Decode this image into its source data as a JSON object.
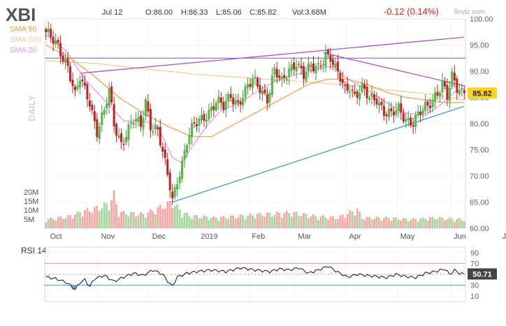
{
  "chart_data": {
    "type": "candlestick",
    "ticker": "XBI",
    "date_label": "Jul 12",
    "ohlc_summary": {
      "open": "O:86.00",
      "high": "H:86.33",
      "low": "L:85.06",
      "close": "C:85.82",
      "volume": "Vol:3.68M"
    },
    "change": "-0.12 (0.14%)",
    "source": "finviz.com",
    "period_label": "DAILY",
    "legend": [
      {
        "label": "SMA 50",
        "color": "#f29a3e"
      },
      {
        "label": "SMA 200",
        "color": "#f2c996"
      },
      {
        "label": "SMA 20",
        "color": "#e48fe0"
      }
    ],
    "price_axis": {
      "ylim": [
        60,
        100
      ],
      "ticks": [
        "60.00",
        "65.00",
        "70.00",
        "75.00",
        "80.00",
        "85.00",
        "90.00",
        "95.00",
        "100.00"
      ]
    },
    "volume_axis": {
      "ticks": [
        "5M",
        "10M",
        "15M",
        "20M"
      ]
    },
    "x_labels": [
      {
        "label": "Oct",
        "day": 1
      },
      {
        "label": "Nov",
        "day": 22
      },
      {
        "label": "Dec",
        "day": 43
      },
      {
        "label": "2019",
        "day": 63
      },
      {
        "label": "Feb",
        "day": 84
      },
      {
        "label": "Mar",
        "day": 103
      },
      {
        "label": "Apr",
        "day": 124
      },
      {
        "label": "May",
        "day": 145
      },
      {
        "label": "Jun",
        "day": 167
      },
      {
        "label": "Jul",
        "day": 187
      }
    ],
    "last_price": "85.82",
    "horizontal_level": 92.5,
    "trendlines": [
      {
        "color": "#b14fc9",
        "from": [
          14,
          89.6
        ],
        "to": [
          172,
          96.5
        ]
      },
      {
        "color": "#b14fc9",
        "from": [
          114,
          93.5
        ],
        "to": [
          172,
          87.2
        ]
      },
      {
        "color": "#3a9dd4",
        "from": [
          52,
          65.0
        ],
        "to": [
          172,
          83.3
        ]
      }
    ],
    "price_keypoints": [
      [
        0,
        97.0
      ],
      [
        5,
        95.0
      ],
      [
        9,
        91.0
      ],
      [
        12,
        85.0
      ],
      [
        14,
        88.5
      ],
      [
        18,
        84.5
      ],
      [
        21,
        78.5
      ],
      [
        24,
        82.0
      ],
      [
        26,
        86.0
      ],
      [
        28,
        80.0
      ],
      [
        31,
        76.5
      ],
      [
        33,
        78.0
      ],
      [
        36,
        80.5
      ],
      [
        39,
        79.5
      ],
      [
        41,
        84.5
      ],
      [
        43,
        80.0
      ],
      [
        46,
        78.5
      ],
      [
        49,
        72.0
      ],
      [
        51,
        68.0
      ],
      [
        52,
        65.5
      ],
      [
        54,
        69.5
      ],
      [
        56,
        72.5
      ],
      [
        58,
        76.5
      ],
      [
        61,
        79.5
      ],
      [
        64,
        81.0
      ],
      [
        67,
        82.5
      ],
      [
        70,
        84.0
      ],
      [
        73,
        83.0
      ],
      [
        76,
        85.5
      ],
      [
        79,
        84.0
      ],
      [
        82,
        86.0
      ],
      [
        85,
        88.0
      ],
      [
        88,
        87.0
      ],
      [
        91,
        85.0
      ],
      [
        94,
        90.0
      ],
      [
        97,
        87.5
      ],
      [
        100,
        90.5
      ],
      [
        103,
        92.0
      ],
      [
        106,
        89.0
      ],
      [
        109,
        90.5
      ],
      [
        112,
        91.0
      ],
      [
        115,
        93.5
      ],
      [
        117,
        92.5
      ],
      [
        119,
        90.0
      ],
      [
        121,
        88.5
      ],
      [
        123,
        86.5
      ],
      [
        125,
        87.5
      ],
      [
        127,
        85.5
      ],
      [
        130,
        86.5
      ],
      [
        133,
        84.5
      ],
      [
        136,
        85.0
      ],
      [
        139,
        82.5
      ],
      [
        142,
        81.5
      ],
      [
        145,
        82.5
      ],
      [
        148,
        81.0
      ],
      [
        151,
        80.5
      ],
      [
        154,
        82.0
      ],
      [
        157,
        83.0
      ],
      [
        160,
        85.5
      ],
      [
        163,
        88.0
      ],
      [
        165,
        85.0
      ],
      [
        167,
        88.5
      ],
      [
        169,
        86.5
      ],
      [
        172,
        85.82
      ]
    ],
    "sma20_keypoints": [
      [
        0,
        97.0
      ],
      [
        8,
        94.0
      ],
      [
        16,
        88.5
      ],
      [
        24,
        84.5
      ],
      [
        32,
        80.5
      ],
      [
        40,
        80.5
      ],
      [
        46,
        79.5
      ],
      [
        52,
        73.5
      ],
      [
        56,
        72.5
      ],
      [
        60,
        75.5
      ],
      [
        66,
        79.5
      ],
      [
        72,
        82.5
      ],
      [
        80,
        84.0
      ],
      [
        88,
        86.5
      ],
      [
        96,
        88.5
      ],
      [
        104,
        89.5
      ],
      [
        112,
        90.5
      ],
      [
        118,
        91.0
      ],
      [
        124,
        88.5
      ],
      [
        132,
        86.5
      ],
      [
        140,
        84.0
      ],
      [
        148,
        82.0
      ],
      [
        156,
        81.5
      ],
      [
        162,
        83.5
      ],
      [
        168,
        86.0
      ],
      [
        172,
        86.8
      ]
    ],
    "sma50_keypoints": [
      [
        0,
        95.0
      ],
      [
        10,
        92.5
      ],
      [
        20,
        89.0
      ],
      [
        30,
        85.0
      ],
      [
        40,
        82.0
      ],
      [
        50,
        79.5
      ],
      [
        60,
        77.5
      ],
      [
        68,
        77.5
      ],
      [
        76,
        79.5
      ],
      [
        84,
        81.5
      ],
      [
        92,
        83.5
      ],
      [
        100,
        85.5
      ],
      [
        108,
        87.5
      ],
      [
        116,
        88.5
      ],
      [
        124,
        88.5
      ],
      [
        132,
        87.5
      ],
      [
        140,
        86.0
      ],
      [
        148,
        85.0
      ],
      [
        156,
        84.5
      ],
      [
        164,
        84.0
      ],
      [
        172,
        84.0
      ]
    ],
    "sma200_keypoints": [
      [
        0,
        92.0
      ],
      [
        20,
        91.5
      ],
      [
        40,
        90.5
      ],
      [
        60,
        89.5
      ],
      [
        80,
        88.8
      ],
      [
        100,
        88.2
      ],
      [
        120,
        87.5
      ],
      [
        140,
        86.5
      ],
      [
        160,
        85.5
      ],
      [
        172,
        84.5
      ]
    ],
    "volume_keypoints": [
      [
        0,
        5
      ],
      [
        10,
        7
      ],
      [
        16,
        10
      ],
      [
        20,
        11
      ],
      [
        26,
        14
      ],
      [
        28,
        19
      ],
      [
        30,
        9
      ],
      [
        40,
        8
      ],
      [
        44,
        10
      ],
      [
        47,
        12
      ],
      [
        52,
        15
      ],
      [
        56,
        9
      ],
      [
        60,
        7
      ],
      [
        70,
        6
      ],
      [
        80,
        7
      ],
      [
        90,
        8
      ],
      [
        100,
        9
      ],
      [
        110,
        7
      ],
      [
        120,
        6
      ],
      [
        128,
        11
      ],
      [
        130,
        6
      ],
      [
        140,
        6
      ],
      [
        150,
        5
      ],
      [
        160,
        6
      ],
      [
        172,
        5
      ]
    ],
    "rsi": {
      "label": "RSI 14",
      "last": "50.71",
      "ticks": [
        "10",
        "30",
        "50",
        "70",
        "90"
      ],
      "overbought": 70,
      "oversold": 30,
      "keypoints": [
        [
          0,
          45
        ],
        [
          4,
          42
        ],
        [
          8,
          36
        ],
        [
          10,
          30
        ],
        [
          12,
          22
        ],
        [
          14,
          35
        ],
        [
          16,
          40
        ],
        [
          18,
          28
        ],
        [
          20,
          42
        ],
        [
          24,
          48
        ],
        [
          28,
          37
        ],
        [
          32,
          45
        ],
        [
          36,
          52
        ],
        [
          40,
          48
        ],
        [
          44,
          58
        ],
        [
          48,
          50
        ],
        [
          50,
          38
        ],
        [
          52,
          28
        ],
        [
          54,
          45
        ],
        [
          58,
          52
        ],
        [
          62,
          55
        ],
        [
          68,
          58
        ],
        [
          74,
          55
        ],
        [
          80,
          62
        ],
        [
          86,
          58
        ],
        [
          92,
          55
        ],
        [
          96,
          60
        ],
        [
          100,
          58
        ],
        [
          104,
          62
        ],
        [
          108,
          52
        ],
        [
          112,
          58
        ],
        [
          116,
          65
        ],
        [
          120,
          54
        ],
        [
          124,
          45
        ],
        [
          128,
          50
        ],
        [
          132,
          48
        ],
        [
          136,
          46
        ],
        [
          140,
          44
        ],
        [
          144,
          50
        ],
        [
          148,
          46
        ],
        [
          152,
          44
        ],
        [
          156,
          52
        ],
        [
          160,
          55
        ],
        [
          164,
          60
        ],
        [
          166,
          50
        ],
        [
          168,
          58
        ],
        [
          170,
          52
        ],
        [
          172,
          50.71
        ]
      ]
    }
  }
}
